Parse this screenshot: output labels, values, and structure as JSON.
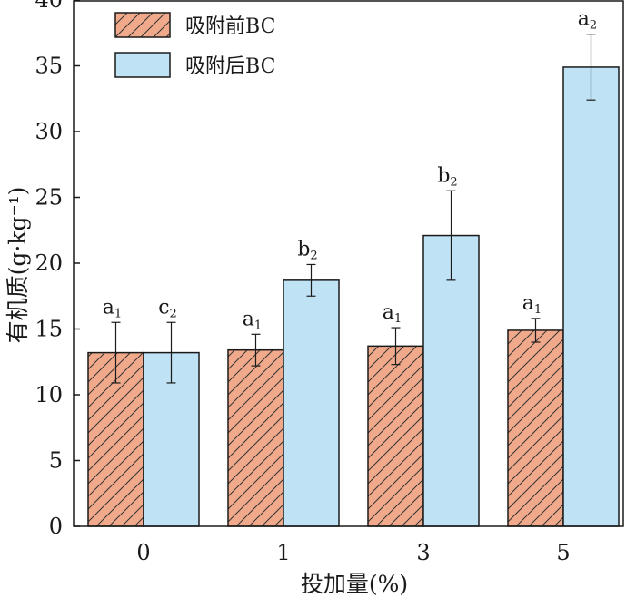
{
  "chart_data": {
    "type": "bar",
    "title": "",
    "xlabel": "投加量(%)",
    "ylabel": "有机质(g·kg⁻¹)",
    "ylim": [
      0,
      40
    ],
    "yticks": [
      "0",
      "5",
      "10",
      "15",
      "20",
      "25",
      "30",
      "35",
      "40"
    ],
    "categories": [
      "0",
      "1",
      "3",
      "5"
    ],
    "series": [
      {
        "name": "吸附前BC",
        "color": "#f0a98a",
        "pattern": "hatch",
        "values": [
          13.2,
          13.4,
          13.7,
          14.9
        ],
        "errors": [
          2.3,
          1.2,
          1.4,
          0.9
        ],
        "labels": [
          {
            "letter": "a",
            "sub": "1"
          },
          {
            "letter": "a",
            "sub": "1"
          },
          {
            "letter": "a",
            "sub": "1"
          },
          {
            "letter": "a",
            "sub": "1"
          }
        ]
      },
      {
        "name": "吸附后BC",
        "color": "#bfe3f5",
        "pattern": "solid",
        "values": [
          13.2,
          18.7,
          22.1,
          34.9
        ],
        "errors": [
          2.3,
          1.2,
          3.4,
          2.5
        ],
        "labels": [
          {
            "letter": "c",
            "sub": "2"
          },
          {
            "letter": "b",
            "sub": "2"
          },
          {
            "letter": "b",
            "sub": "2"
          },
          {
            "letter": "a",
            "sub": "2"
          }
        ]
      }
    ],
    "legend_position": "top-left"
  }
}
